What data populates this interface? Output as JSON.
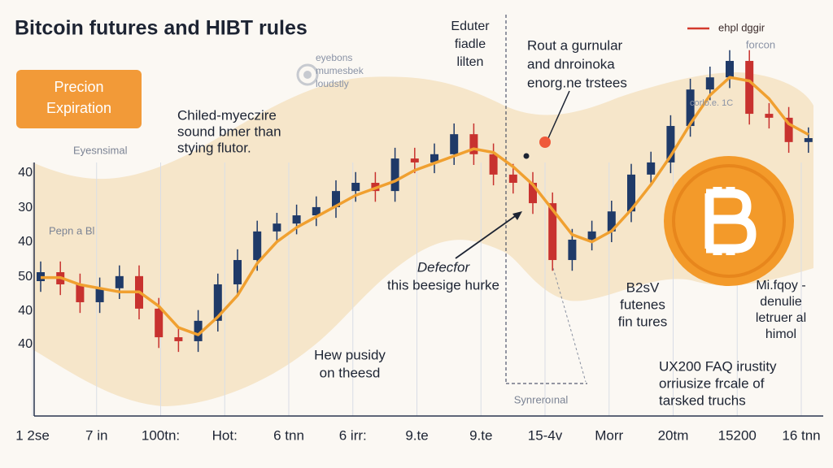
{
  "chart_data": {
    "type": "candlestick",
    "title": "Bitcoin futures and HIBT rules",
    "badge": [
      "Precion",
      "Expiration"
    ],
    "ylim": [
      0,
      100
    ],
    "y_axis_labels": [
      "40",
      "30",
      "40",
      "50",
      "40",
      "40"
    ],
    "x_labels": [
      "1 2se",
      "7 in",
      "100tn:",
      "Hot:",
      "6 tnn",
      "6 irr:",
      "9.te",
      "9.te",
      "15-4v",
      "Morr",
      "20tm",
      "15200",
      "16 tnn"
    ],
    "up_color": "#1f3a68",
    "down_color": "#c8322f",
    "open": [
      35.0,
      37.5,
      34.1,
      29.1,
      33.0,
      36.4,
      27.3,
      19.3,
      18.2,
      23.9,
      34.1,
      40.9,
      48.9,
      51.1,
      53.4,
      55.7,
      60.2,
      62.5,
      60.2,
      69.3,
      68.2,
      70.5,
      76.1,
      70.5,
      64.8,
      62.5,
      56.8,
      40.9,
      46.6,
      48.9,
      54.5,
      64.8,
      68.2,
      78.4,
      88.6,
      92.0,
      96.6,
      81.8,
      80.7,
      73.9
    ],
    "high": [
      40.5,
      40.5,
      37.1,
      36.0,
      39.4,
      39.4,
      30.3,
      22.3,
      26.9,
      37.1,
      43.9,
      51.9,
      54.1,
      56.4,
      58.7,
      63.2,
      65.5,
      65.5,
      72.3,
      72.3,
      73.5,
      79.1,
      79.1,
      73.5,
      67.8,
      65.5,
      59.8,
      49.6,
      51.9,
      57.5,
      67.8,
      71.2,
      81.4,
      91.6,
      95.0,
      99.6,
      99.6,
      84.8,
      83.7,
      78.0
    ],
    "low": [
      32.0,
      31.1,
      26.1,
      26.1,
      30.0,
      24.3,
      16.3,
      15.2,
      15.2,
      20.9,
      31.1,
      37.9,
      45.9,
      48.1,
      50.4,
      52.7,
      57.2,
      57.2,
      57.2,
      65.2,
      65.2,
      67.5,
      67.5,
      61.8,
      59.5,
      53.8,
      37.9,
      37.9,
      43.6,
      45.9,
      51.5,
      61.8,
      65.2,
      75.4,
      85.6,
      89.0,
      78.8,
      77.7,
      70.9,
      70.9
    ],
    "close": [
      37.5,
      34.1,
      29.1,
      33.0,
      36.4,
      27.3,
      19.3,
      18.2,
      23.9,
      34.1,
      40.9,
      48.9,
      51.1,
      53.4,
      55.7,
      60.2,
      62.5,
      60.2,
      69.3,
      68.2,
      70.5,
      76.1,
      70.5,
      64.8,
      62.5,
      56.8,
      40.9,
      46.6,
      48.9,
      54.5,
      64.8,
      68.2,
      78.4,
      88.6,
      92.0,
      96.6,
      81.8,
      80.7,
      73.9,
      75.0
    ],
    "average": {
      "color": "#f0a030",
      "values": [
        36,
        36,
        34,
        33,
        32,
        32,
        28,
        22,
        20,
        25,
        31,
        40,
        46,
        50,
        53,
        56,
        59,
        61,
        63,
        66,
        68,
        70,
        72,
        71,
        67,
        62,
        55,
        48,
        46,
        49,
        55,
        62,
        70,
        79,
        87,
        92,
        91,
        86,
        79,
        76
      ]
    },
    "annotations": [
      [
        "Chiled-myeczire",
        "sound bmer than",
        "stying flutor."
      ],
      [
        "Eyesnsimal"
      ],
      [
        "Pepn a Bl"
      ],
      [
        "eyebons",
        "mumesbek",
        "loudstly"
      ],
      [
        "Eduter",
        "fiadle",
        "lilten"
      ],
      [
        "Rout a gurnular",
        "and dnroinoka",
        "enorg.ne trstees"
      ],
      [
        "ehpl dggir"
      ],
      [
        "forcon"
      ],
      [
        "corlo.e. 1C"
      ],
      [
        "Defecfor",
        "this beesige hurke"
      ],
      [
        "B2sV",
        "futenes",
        "fin tures"
      ],
      [
        "Mi.fqoy -",
        "denulie",
        "letruer al",
        "himol"
      ],
      [
        "Hew pusidy",
        "on theesd"
      ],
      [
        "UX200 FAQ irustity",
        "orriusize frcale of",
        "tarsked truchs"
      ],
      [
        "Synreroınal"
      ]
    ]
  }
}
